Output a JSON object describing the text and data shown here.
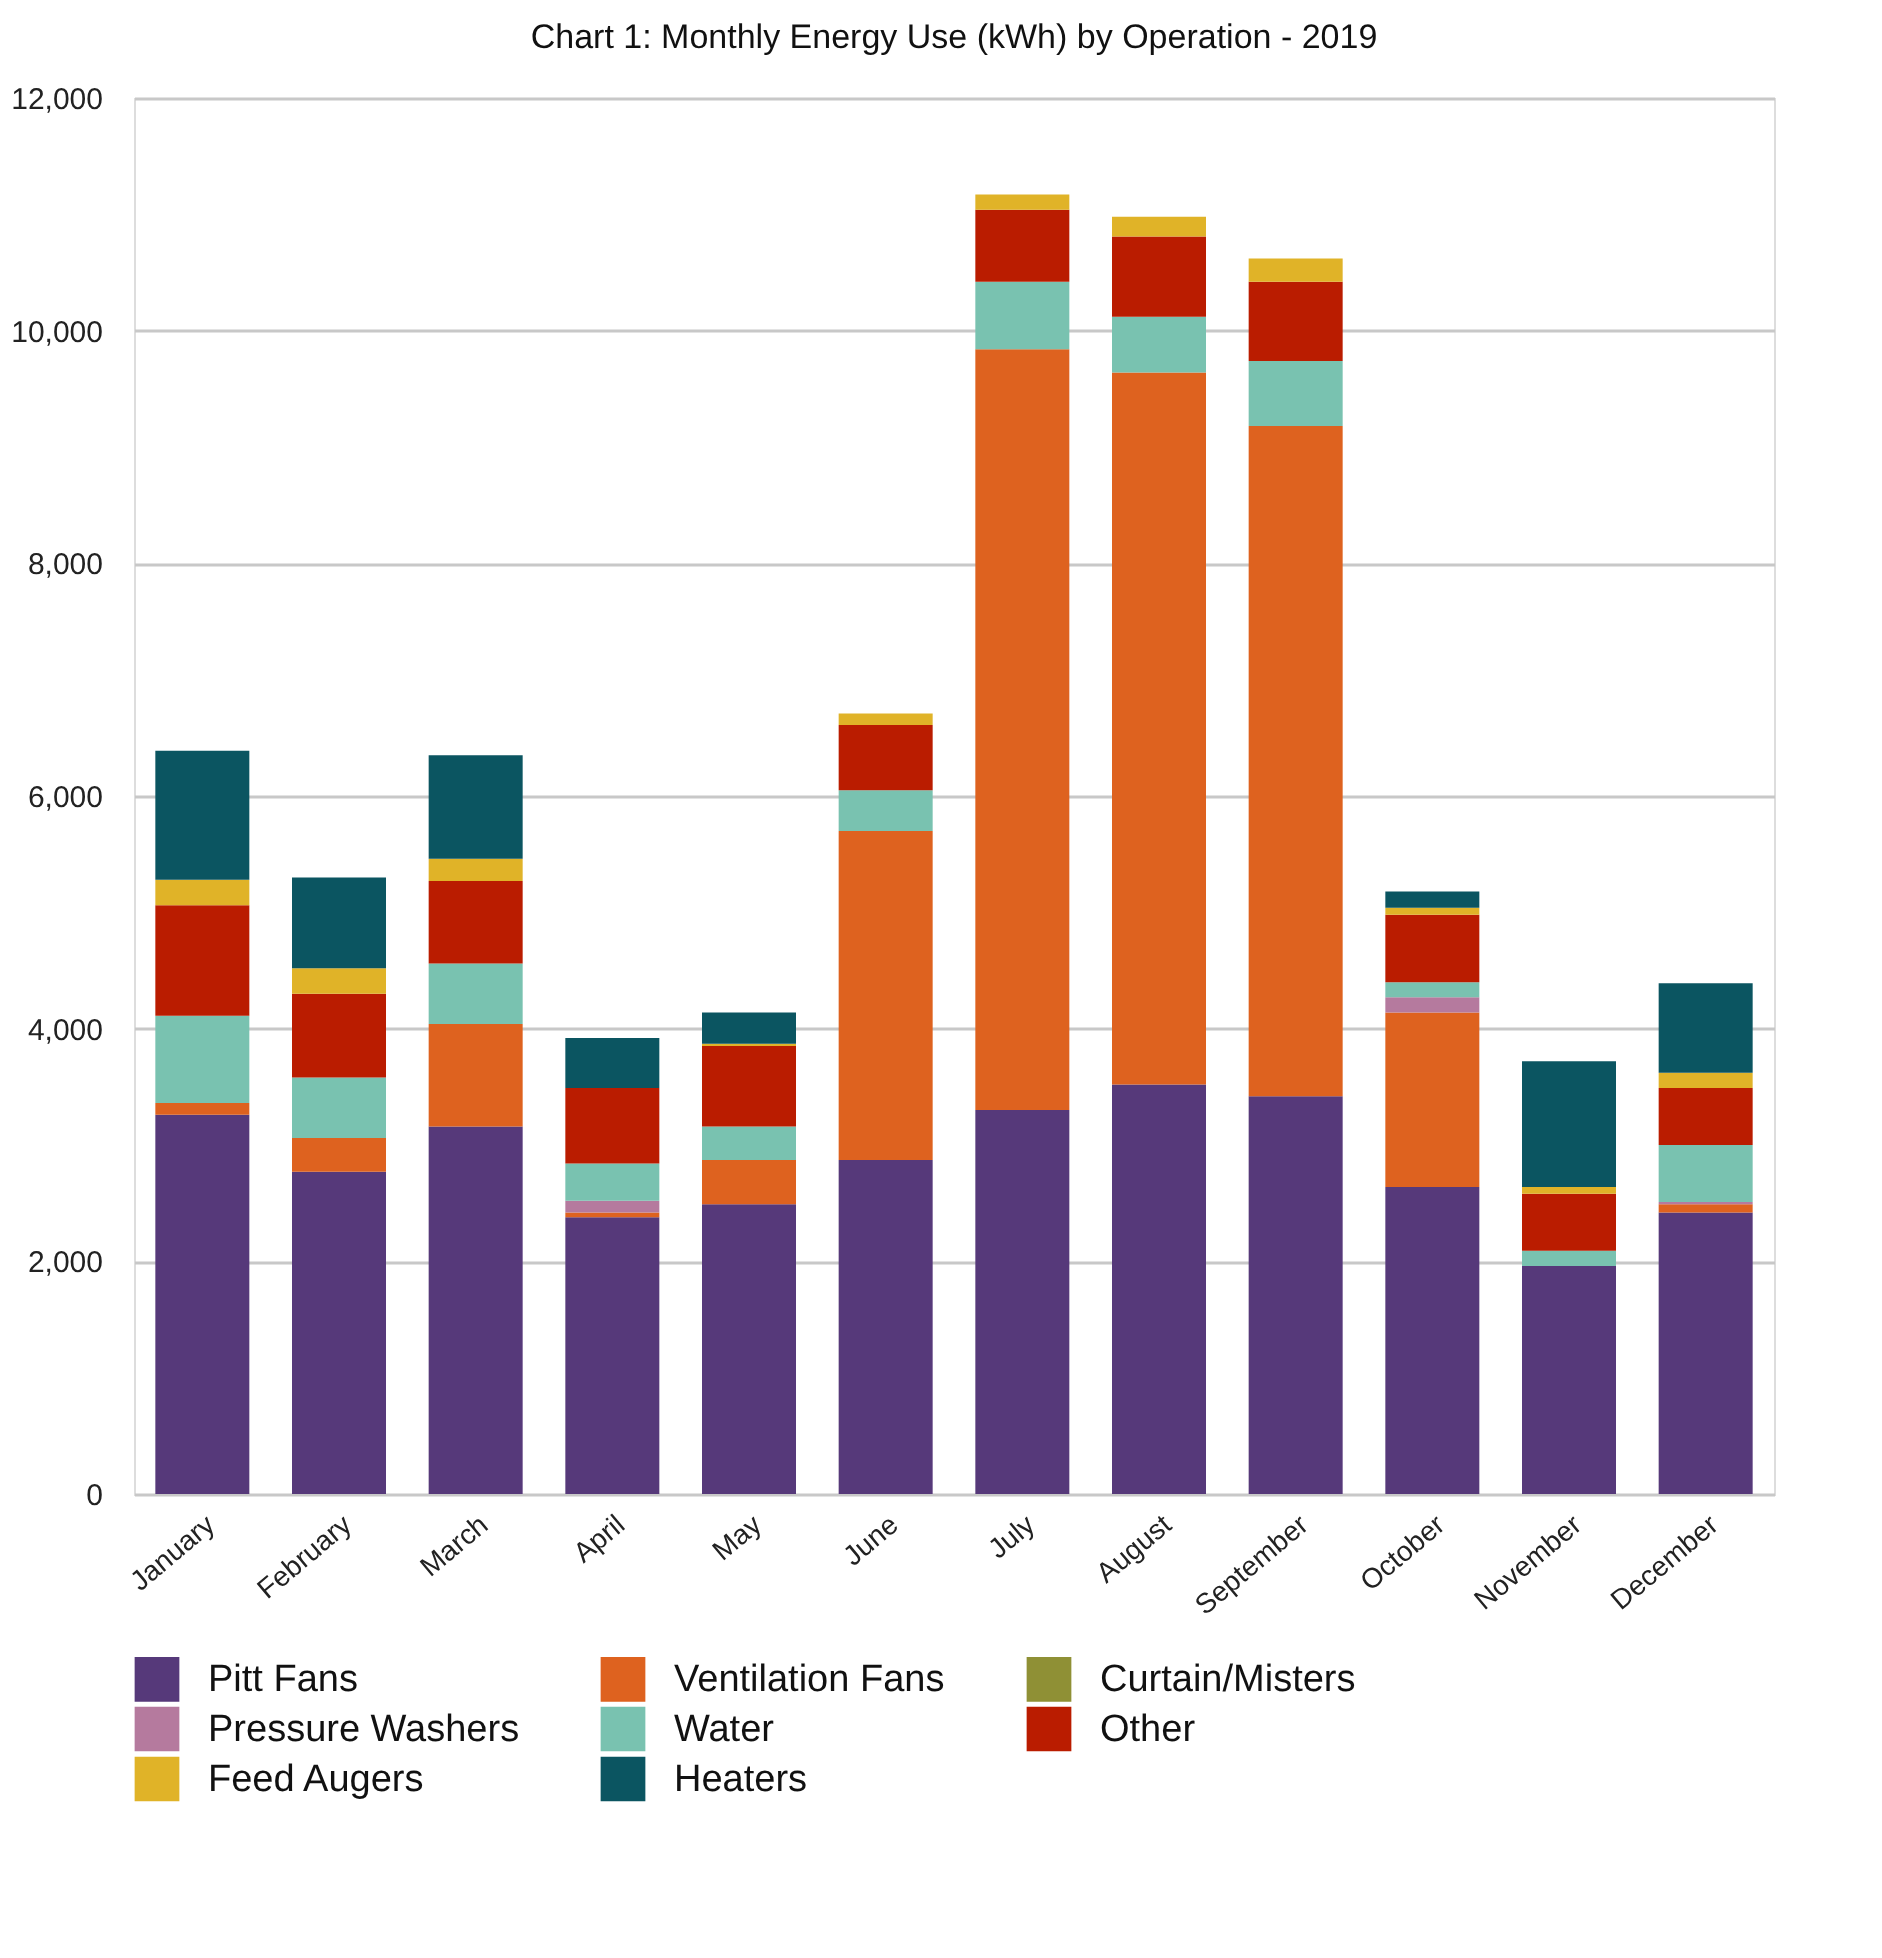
{
  "chart_data": {
    "type": "bar",
    "title": "Chart 1:  Monthly Energy Use (kWh) by Operation - 2019",
    "stacked": true,
    "categories": [
      "January",
      "February",
      "March",
      "April",
      "May",
      "June",
      "July",
      "August",
      "September",
      "October",
      "November",
      "December"
    ],
    "series": [
      {
        "name": "Pitt Fans",
        "color": "#56397a",
        "values": [
          3260,
          2770,
          3160,
          2380,
          2490,
          2870,
          3300,
          3520,
          3420,
          2640,
          1960,
          2420
        ]
      },
      {
        "name": "Ventilation Fans",
        "color": "#de621f",
        "values": [
          100,
          290,
          880,
          40,
          380,
          2830,
          6540,
          6120,
          5760,
          1500,
          null,
          70
        ]
      },
      {
        "name": "Curtain/Misters",
        "color": "#8f9035",
        "values": [
          null,
          null,
          null,
          null,
          null,
          null,
          null,
          null,
          null,
          null,
          null,
          null
        ]
      },
      {
        "name": "Pressure Washers",
        "color": "#b57a9e",
        "values": [
          null,
          null,
          null,
          100,
          null,
          null,
          null,
          null,
          null,
          130,
          null,
          20
        ]
      },
      {
        "name": "Water",
        "color": "#79c2b0",
        "values": [
          750,
          520,
          520,
          320,
          290,
          350,
          580,
          480,
          560,
          130,
          130,
          490
        ]
      },
      {
        "name": "Other",
        "color": "#ba1c00",
        "values": [
          950,
          720,
          710,
          650,
          690,
          560,
          620,
          690,
          680,
          580,
          490,
          490
        ]
      },
      {
        "name": "Feed Augers",
        "color": "#e0b328",
        "values": [
          220,
          220,
          190,
          null,
          20,
          100,
          130,
          170,
          200,
          60,
          60,
          130
        ]
      },
      {
        "name": "Heaters",
        "color": "#0b5561",
        "values": [
          1110,
          780,
          890,
          430,
          270,
          null,
          null,
          null,
          null,
          140,
          1080,
          770
        ]
      }
    ],
    "ylim": [
      0,
      12000
    ],
    "yticks": [
      0,
      {
        "value": 2000,
        "label": "2,000"
      },
      {
        "value": 4000,
        "label": "4,000"
      },
      {
        "value": 6000,
        "label": "6,000"
      },
      {
        "value": 8000,
        "label": "8,000"
      },
      {
        "value": 10000,
        "label": "10,000"
      },
      {
        "value": 12000,
        "label": "12,000"
      }
    ],
    "grid": "y",
    "legend": "bottom"
  }
}
